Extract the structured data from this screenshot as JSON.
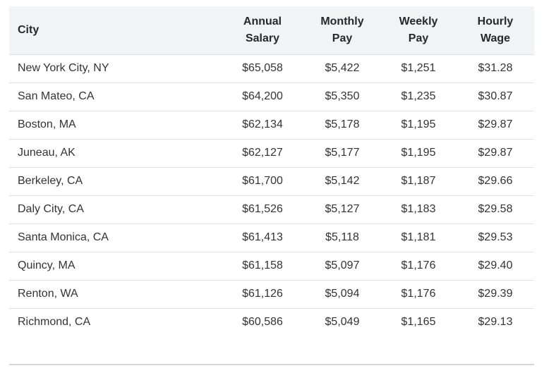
{
  "colors": {
    "header_bg": "#f2f3f4",
    "header_text": "#24292e",
    "body_text": "#333333",
    "row_border": "#e0e3e6",
    "divider": "#d6d6d6",
    "page_bg": "#ffffff"
  },
  "chart_data": {
    "type": "table",
    "legend_position": "none",
    "columns": [
      {
        "label": "City",
        "label_lines": [
          "City"
        ]
      },
      {
        "label": "Annual Salary",
        "label_lines": [
          "Annual",
          "Salary"
        ]
      },
      {
        "label": "Monthly Pay",
        "label_lines": [
          "Monthly",
          "Pay"
        ]
      },
      {
        "label": "Weekly Pay",
        "label_lines": [
          "Weekly",
          "Pay"
        ]
      },
      {
        "label": "Hourly Wage",
        "label_lines": [
          "Hourly",
          "Wage"
        ]
      }
    ],
    "rows": [
      {
        "city": "New York City, NY",
        "annual": "$65,058",
        "monthly": "$5,422",
        "weekly": "$1,251",
        "hourly": "$31.28"
      },
      {
        "city": "San Mateo, CA",
        "annual": "$64,200",
        "monthly": "$5,350",
        "weekly": "$1,235",
        "hourly": "$30.87"
      },
      {
        "city": "Boston, MA",
        "annual": "$62,134",
        "monthly": "$5,178",
        "weekly": "$1,195",
        "hourly": "$29.87"
      },
      {
        "city": "Juneau, AK",
        "annual": "$62,127",
        "monthly": "$5,177",
        "weekly": "$1,195",
        "hourly": "$29.87"
      },
      {
        "city": "Berkeley, CA",
        "annual": "$61,700",
        "monthly": "$5,142",
        "weekly": "$1,187",
        "hourly": "$29.66"
      },
      {
        "city": "Daly City, CA",
        "annual": "$61,526",
        "monthly": "$5,127",
        "weekly": "$1,183",
        "hourly": "$29.58"
      },
      {
        "city": "Santa Monica, CA",
        "annual": "$61,413",
        "monthly": "$5,118",
        "weekly": "$1,181",
        "hourly": "$29.53"
      },
      {
        "city": "Quincy, MA",
        "annual": "$61,158",
        "monthly": "$5,097",
        "weekly": "$1,176",
        "hourly": "$29.40"
      },
      {
        "city": "Renton, WA",
        "annual": "$61,126",
        "monthly": "$5,094",
        "weekly": "$1,176",
        "hourly": "$29.39"
      },
      {
        "city": "Richmond, CA",
        "annual": "$60,586",
        "monthly": "$5,049",
        "weekly": "$1,165",
        "hourly": "$29.13"
      }
    ]
  }
}
